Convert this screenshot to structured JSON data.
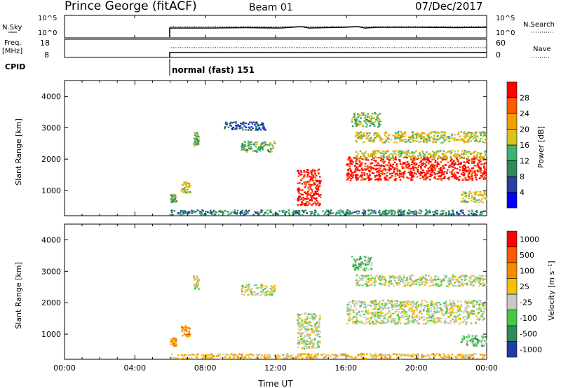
{
  "header": {
    "station": "Prince George (fitACF)",
    "beam": "Beam 01",
    "date": "07/Dec/2017"
  },
  "sky_panel": {
    "left_label": "N.Sky",
    "left_ticks": [
      "10^5",
      "10^0"
    ],
    "right_ticks": [
      "10^5",
      "10^0"
    ],
    "right_label": "N.Search"
  },
  "freq_panel": {
    "left_label_line1": "Freq.",
    "left_label_line2": "[MHz]",
    "left_ticks": [
      "18",
      "8"
    ],
    "right_ticks": [
      "60",
      "0"
    ],
    "right_label": "Nave"
  },
  "cpid": {
    "label": "CPID",
    "text": "normal (fast) 151"
  },
  "colors": {
    "power": [
      "#0000ff",
      "#2a3f9e",
      "#2e8b57",
      "#3cb371",
      "#d7c21e",
      "#f5a000",
      "#ff5a00",
      "#ff0000"
    ],
    "velocity": [
      "#1e3ca8",
      "#2e8b57",
      "#46c846",
      "#c8c8c2",
      "#f5c000",
      "#f58c00",
      "#ff5a00",
      "#ff0000"
    ],
    "sky_line": "#000000"
  },
  "chart_data": [
    {
      "type": "heatmap",
      "name": "power",
      "xlabel": "",
      "ylabel": "Slant Range [km]",
      "xlim": [
        0,
        24
      ],
      "ylim": [
        200,
        4500
      ],
      "yticks": [
        "1000",
        "2000",
        "3000",
        "4000"
      ],
      "colorbar_label": "Power [dB]",
      "colorbar_ticks": [
        "28",
        "24",
        "20",
        "16",
        "12",
        "8",
        "4"
      ],
      "data_start_hour": 6,
      "regions": [
        {
          "x": [
            6.0,
            24.0
          ],
          "y": [
            200,
            400
          ],
          "level": 2
        },
        {
          "x": [
            6.0,
            6.4
          ],
          "y": [
            600,
            900
          ],
          "level": 3
        },
        {
          "x": [
            6.6,
            7.2
          ],
          "y": [
            900,
            1300
          ],
          "level": 4
        },
        {
          "x": [
            7.3,
            7.7
          ],
          "y": [
            2400,
            2900
          ],
          "level": 3
        },
        {
          "x": [
            9.0,
            11.5
          ],
          "y": [
            2900,
            3200
          ],
          "level": 1
        },
        {
          "x": [
            10.0,
            12.0
          ],
          "y": [
            2200,
            2600
          ],
          "level": 3
        },
        {
          "x": [
            13.2,
            14.6
          ],
          "y": [
            500,
            1700
          ],
          "level": 7
        },
        {
          "x": [
            16.0,
            24.0
          ],
          "y": [
            1300,
            2100
          ],
          "level": 7
        },
        {
          "x": [
            16.5,
            24.0
          ],
          "y": [
            2000,
            2300
          ],
          "level": 4
        },
        {
          "x": [
            16.5,
            24.0
          ],
          "y": [
            2500,
            2900
          ],
          "level": 4
        },
        {
          "x": [
            16.3,
            18.0
          ],
          "y": [
            3000,
            3500
          ],
          "level": 3
        },
        {
          "x": [
            22.5,
            24.0
          ],
          "y": [
            600,
            1000
          ],
          "level": 4
        }
      ]
    },
    {
      "type": "heatmap",
      "name": "velocity",
      "xlabel": "Time UT",
      "ylabel": "Slant Range [km]",
      "xlim": [
        0,
        24
      ],
      "ylim": [
        200,
        4500
      ],
      "xticks": [
        "00:00",
        "04:00",
        "08:00",
        "12:00",
        "16:00",
        "20:00",
        "00:00"
      ],
      "yticks": [
        "1000",
        "2000",
        "3000",
        "4000"
      ],
      "colorbar_label": "Velocity [m s⁻¹]",
      "colorbar_ticks": [
        "1000",
        "500",
        "100",
        "25",
        "-25",
        "-100",
        "-500",
        "-1000"
      ],
      "data_start_hour": 6,
      "regions": [
        {
          "x": [
            6.0,
            24.0
          ],
          "y": [
            200,
            400
          ],
          "level": 4
        },
        {
          "x": [
            6.0,
            6.4
          ],
          "y": [
            600,
            900
          ],
          "level": 5
        },
        {
          "x": [
            6.6,
            7.2
          ],
          "y": [
            900,
            1300
          ],
          "level": 5
        },
        {
          "x": [
            7.3,
            7.7
          ],
          "y": [
            2400,
            2900
          ],
          "level": 3
        },
        {
          "x": [
            10.0,
            12.0
          ],
          "y": [
            2200,
            2600
          ],
          "level": 3
        },
        {
          "x": [
            13.2,
            14.6
          ],
          "y": [
            500,
            1700
          ],
          "level": 3
        },
        {
          "x": [
            16.0,
            24.0
          ],
          "y": [
            1300,
            2100
          ],
          "level": 3
        },
        {
          "x": [
            16.5,
            24.0
          ],
          "y": [
            2500,
            2900
          ],
          "level": 3
        },
        {
          "x": [
            16.3,
            17.5
          ],
          "y": [
            3000,
            3500
          ],
          "level": 2
        },
        {
          "x": [
            22.5,
            24.0
          ],
          "y": [
            600,
            1000
          ],
          "level": 2
        }
      ]
    }
  ]
}
